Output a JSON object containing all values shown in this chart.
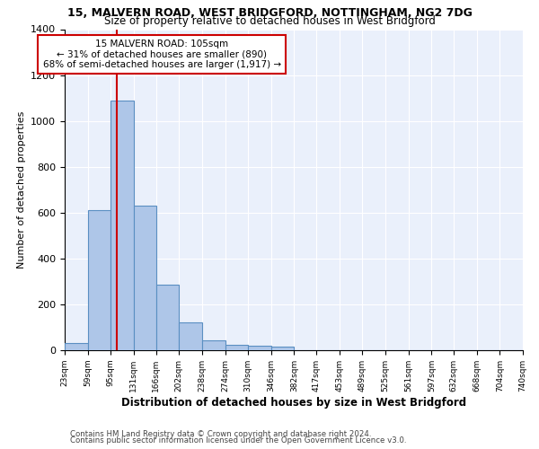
{
  "title1": "15, MALVERN ROAD, WEST BRIDGFORD, NOTTINGHAM, NG2 7DG",
  "title2": "Size of property relative to detached houses in West Bridgford",
  "xlabel": "Distribution of detached houses by size in West Bridgford",
  "ylabel": "Number of detached properties",
  "bin_edges": [
    23,
    59,
    95,
    131,
    166,
    202,
    238,
    274,
    310,
    346,
    382,
    417,
    453,
    489,
    525,
    561,
    597,
    632,
    668,
    704,
    740
  ],
  "bin_counts": [
    30,
    610,
    1090,
    630,
    285,
    120,
    45,
    25,
    20,
    15,
    0,
    0,
    0,
    0,
    0,
    0,
    0,
    0,
    0,
    0
  ],
  "bar_color": "#aec6e8",
  "bar_edge_color": "#5a8fc2",
  "property_size": 105,
  "vline_color": "#cc0000",
  "annotation_line1": "15 MALVERN ROAD: 105sqm",
  "annotation_line2": "← 31% of detached houses are smaller (890)",
  "annotation_line3": "68% of semi-detached houses are larger (1,917) →",
  "annotation_box_color": "#ffffff",
  "annotation_box_edge_color": "#cc0000",
  "footnote1": "Contains HM Land Registry data © Crown copyright and database right 2024.",
  "footnote2": "Contains public sector information licensed under the Open Government Licence v3.0.",
  "bg_color": "#eaf0fb",
  "fig_bg_color": "#ffffff",
  "ylim": [
    0,
    1400
  ],
  "yticks": [
    0,
    200,
    400,
    600,
    800,
    1000,
    1200,
    1400
  ]
}
